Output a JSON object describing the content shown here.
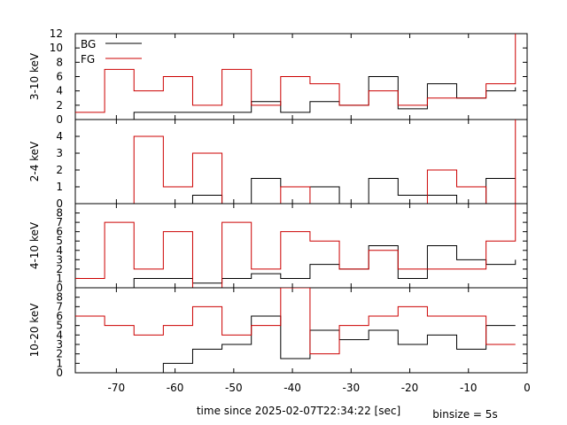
{
  "chart_data": {
    "type": "line",
    "layout": "stacked-panels-shared-x",
    "xlabel": "time since 2025-02-07T22:34:22 [sec]",
    "xlim": [
      -77,
      0
    ],
    "xticks": [
      -70,
      -60,
      -50,
      -40,
      -30,
      -20,
      -10,
      0
    ],
    "footnote": "binsize = 5s",
    "legend": {
      "placement": "top-left",
      "entries": [
        {
          "name": "BG",
          "color": "#000000"
        },
        {
          "name": "FG",
          "color": "#cc0000"
        }
      ]
    },
    "bin_edges": [
      -77,
      -72,
      -67,
      -62,
      -57,
      -52,
      -47,
      -42,
      -37,
      -32,
      -27,
      -22,
      -17,
      -12,
      -7,
      -2
    ],
    "panels": [
      {
        "ylabel": "3-10 keV",
        "ylim": [
          0,
          12
        ],
        "yticks": [
          0,
          2,
          4,
          6,
          8,
          10,
          12
        ],
        "series": [
          {
            "name": "BG",
            "color": "#000000",
            "values": [
              0,
              0,
              1,
              1,
              1,
              1,
              2.5,
              1,
              2.5,
              2,
              6,
              1.5,
              5,
              3,
              4
            ],
            "end": 4.5
          },
          {
            "name": "FG",
            "color": "#cc0000",
            "values": [
              1,
              7,
              4,
              6,
              2,
              7,
              2,
              6,
              5,
              2,
              4,
              2,
              3,
              3,
              5
            ],
            "end": 12
          }
        ]
      },
      {
        "ylabel": "2-4 keV",
        "ylim": [
          0,
          5
        ],
        "yticks": [
          0,
          1,
          2,
          3,
          4
        ],
        "series": [
          {
            "name": "BG",
            "color": "#000000",
            "values": [
              0,
              0,
              0,
              0,
              0.5,
              0,
              1.5,
              1,
              1,
              0,
              1.5,
              0.5,
              0.5,
              0,
              1.5
            ],
            "end": 1.5
          },
          {
            "name": "FG",
            "color": "#cc0000",
            "values": [
              0,
              0,
              4,
              1,
              3,
              0,
              0,
              1,
              0,
              0,
              0,
              0,
              2,
              1,
              0
            ],
            "end": 5
          }
        ]
      },
      {
        "ylabel": "4-10 keV",
        "ylim": [
          0,
          9
        ],
        "yticks": [
          0,
          1,
          2,
          3,
          4,
          5,
          6,
          7,
          8
        ],
        "series": [
          {
            "name": "BG",
            "color": "#000000",
            "values": [
              0,
              0,
              1,
              1,
              0.5,
              1,
              1.5,
              1,
              2.5,
              2,
              4.5,
              1,
              4.5,
              3,
              2.5
            ],
            "end": 3
          },
          {
            "name": "FG",
            "color": "#cc0000",
            "values": [
              1,
              7,
              2,
              6,
              0,
              7,
              2,
              6,
              5,
              2,
              4,
              2,
              2,
              2,
              5
            ],
            "end": 9
          }
        ]
      },
      {
        "ylabel": "10-20 keV",
        "ylim": [
          0,
          9
        ],
        "yticks": [
          0,
          1,
          2,
          3,
          4,
          5,
          6,
          7,
          8
        ],
        "series": [
          {
            "name": "BG",
            "color": "#000000",
            "values": [
              0,
              0,
              0,
              1,
              2.5,
              3,
              6,
              1.5,
              4.5,
              3.5,
              4.5,
              3,
              4,
              2.5,
              5
            ],
            "end": 5
          },
          {
            "name": "FG",
            "color": "#cc0000",
            "values": [
              6,
              5,
              4,
              5,
              7,
              4,
              5,
              9,
              2,
              5,
              6,
              7,
              6,
              6,
              3
            ],
            "end": 3
          }
        ]
      }
    ]
  }
}
